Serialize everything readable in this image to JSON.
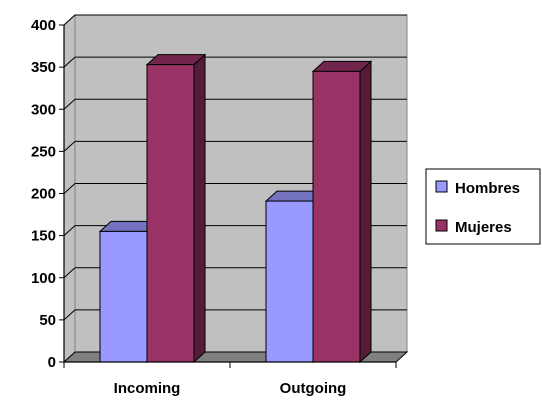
{
  "chart_data": {
    "type": "bar",
    "style": "3d-clustered-column",
    "categories": [
      "Incoming",
      "Outgoing"
    ],
    "series": [
      {
        "name": "Hombres",
        "values": [
          155,
          191
        ],
        "color": "#9999FF"
      },
      {
        "name": "Mujeres",
        "values": [
          353,
          345
        ],
        "color": "#993366"
      }
    ],
    "ylim": [
      0,
      400
    ],
    "yticks": [
      "0",
      "50",
      "100",
      "150",
      "200",
      "250",
      "300",
      "350",
      "400"
    ],
    "wall_color": "#C0C0C0",
    "grid": true,
    "legend_position": "right"
  }
}
